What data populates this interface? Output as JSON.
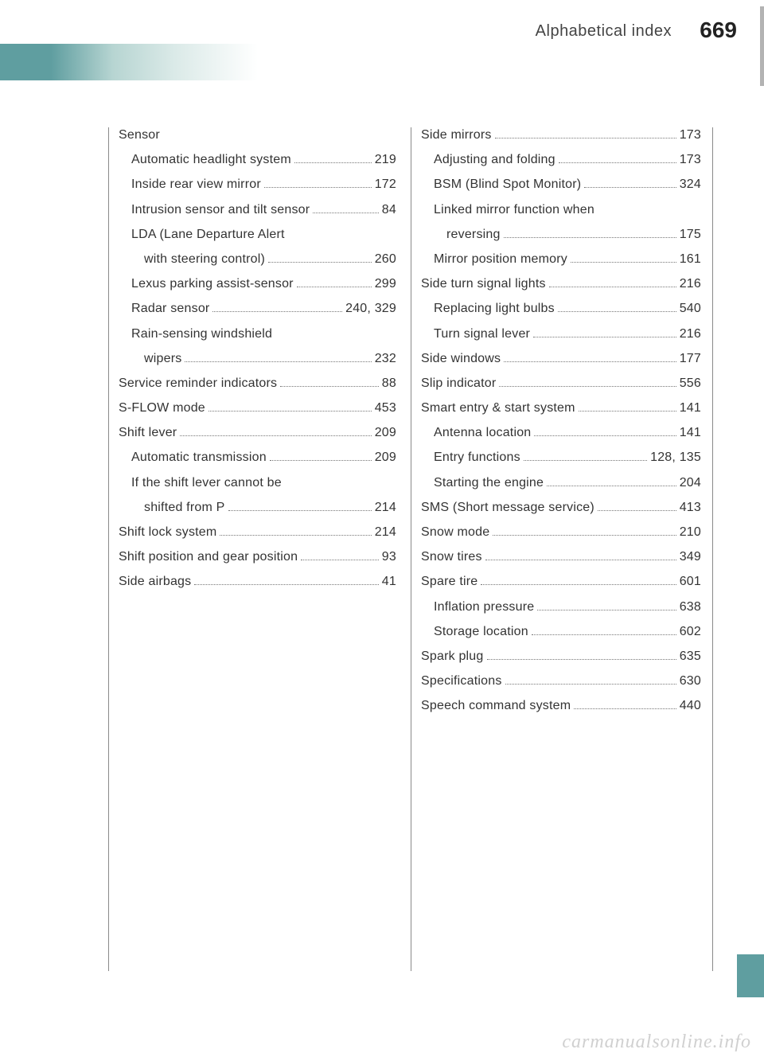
{
  "header": {
    "title": "Alphabetical index",
    "page_number": "669"
  },
  "colors": {
    "teal": "#5f9ea0"
  },
  "left_column": [
    {
      "label": "Sensor",
      "page": "",
      "indent": 0,
      "nopage": true
    },
    {
      "label": "Automatic headlight system",
      "page": "219",
      "indent": 1
    },
    {
      "label": "Inside rear view mirror",
      "page": "172",
      "indent": 1
    },
    {
      "label": "Intrusion sensor and tilt sensor",
      "page": "84",
      "indent": 1
    },
    {
      "label": "LDA (Lane Departure Alert",
      "page": "",
      "indent": 1,
      "nopage": true
    },
    {
      "label": "with steering control)",
      "page": "260",
      "indent": 2
    },
    {
      "label": "Lexus parking assist-sensor",
      "page": "299",
      "indent": 1
    },
    {
      "label": "Radar sensor",
      "page": "240, 329",
      "indent": 1
    },
    {
      "label": "Rain-sensing windshield",
      "page": "",
      "indent": 1,
      "nopage": true
    },
    {
      "label": "wipers",
      "page": "232",
      "indent": 2
    },
    {
      "label": "Service reminder indicators",
      "page": "88",
      "indent": 0
    },
    {
      "label": "S-FLOW mode",
      "page": "453",
      "indent": 0
    },
    {
      "label": "Shift lever",
      "page": "209",
      "indent": 0
    },
    {
      "label": "Automatic transmission",
      "page": "209",
      "indent": 1
    },
    {
      "label": "If the shift lever cannot be",
      "page": "",
      "indent": 1,
      "nopage": true
    },
    {
      "label": "shifted from P",
      "page": "214",
      "indent": 2
    },
    {
      "label": "Shift lock system",
      "page": "214",
      "indent": 0
    },
    {
      "label": "Shift position and gear position",
      "page": "93",
      "indent": 0
    },
    {
      "label": "Side airbags",
      "page": "41",
      "indent": 0
    }
  ],
  "right_column": [
    {
      "label": "Side mirrors",
      "page": "173",
      "indent": 0
    },
    {
      "label": "Adjusting and folding",
      "page": "173",
      "indent": 1
    },
    {
      "label": "BSM (Blind Spot Monitor)",
      "page": "324",
      "indent": 1
    },
    {
      "label": "Linked mirror function when",
      "page": "",
      "indent": 1,
      "nopage": true
    },
    {
      "label": "reversing",
      "page": "175",
      "indent": 2
    },
    {
      "label": "Mirror position memory",
      "page": "161",
      "indent": 1
    },
    {
      "label": "Side turn signal lights",
      "page": "216",
      "indent": 0
    },
    {
      "label": "Replacing light bulbs",
      "page": "540",
      "indent": 1
    },
    {
      "label": "Turn signal lever",
      "page": "216",
      "indent": 1
    },
    {
      "label": "Side windows",
      "page": "177",
      "indent": 0
    },
    {
      "label": "Slip indicator",
      "page": "556",
      "indent": 0
    },
    {
      "label": "Smart entry & start system",
      "page": "141",
      "indent": 0
    },
    {
      "label": "Antenna location",
      "page": "141",
      "indent": 1
    },
    {
      "label": "Entry functions",
      "page": "128, 135",
      "indent": 1
    },
    {
      "label": "Starting the engine",
      "page": "204",
      "indent": 1
    },
    {
      "label": "SMS (Short message service)",
      "page": "413",
      "indent": 0
    },
    {
      "label": "Snow mode",
      "page": "210",
      "indent": 0
    },
    {
      "label": "Snow tires",
      "page": "349",
      "indent": 0
    },
    {
      "label": "Spare tire",
      "page": "601",
      "indent": 0
    },
    {
      "label": "Inflation pressure",
      "page": "638",
      "indent": 1
    },
    {
      "label": "Storage location",
      "page": "602",
      "indent": 1
    },
    {
      "label": "Spark plug",
      "page": "635",
      "indent": 0
    },
    {
      "label": "Specifications",
      "page": "630",
      "indent": 0
    },
    {
      "label": "Speech command system",
      "page": "440",
      "indent": 0
    }
  ],
  "watermark": "carmanualsonline.info"
}
